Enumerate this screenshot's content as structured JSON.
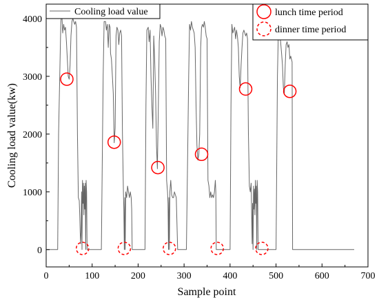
{
  "chart_data": {
    "type": "line",
    "xlabel": "Sample point",
    "ylabel": "Cooling load value(kw)",
    "xlim": [
      0,
      700
    ],
    "ylim": [
      -300,
      4250
    ],
    "xticks": [
      0,
      100,
      200,
      300,
      400,
      500,
      600,
      700
    ],
    "yticks": [
      0,
      1000,
      2000,
      3000,
      4000
    ],
    "grid": false,
    "legend_line": "Cooling load value",
    "legend_markers": [
      "lunch time period",
      "dinner time period"
    ],
    "series": [
      {
        "name": "Cooling load value",
        "color": "#666666",
        "points": [
          [
            0,
            0
          ],
          [
            25,
            0
          ],
          [
            27,
            2000
          ],
          [
            32,
            3950
          ],
          [
            34,
            4100
          ],
          [
            36,
            3750
          ],
          [
            38,
            3900
          ],
          [
            40,
            3800
          ],
          [
            42,
            3850
          ],
          [
            44,
            3600
          ],
          [
            46,
            3300
          ],
          [
            48,
            3000
          ],
          [
            50,
            2950
          ],
          [
            52,
            3200
          ],
          [
            54,
            3700
          ],
          [
            56,
            3950
          ],
          [
            58,
            4000
          ],
          [
            60,
            3950
          ],
          [
            62,
            3900
          ],
          [
            64,
            3950
          ],
          [
            66,
            3850
          ],
          [
            68,
            2000
          ],
          [
            70,
            900
          ],
          [
            72,
            850
          ],
          [
            73,
            600
          ],
          [
            74,
            300
          ],
          [
            75,
            100
          ],
          [
            76,
            300
          ],
          [
            77,
            1000
          ],
          [
            78,
            0
          ],
          [
            79,
            1200
          ],
          [
            80,
            800
          ],
          [
            81,
            1150
          ],
          [
            82,
            600
          ],
          [
            83,
            1100
          ],
          [
            84,
            700
          ],
          [
            85,
            1150
          ],
          [
            86,
            0
          ],
          [
            87,
            1200
          ],
          [
            88,
            1000
          ],
          [
            89,
            0
          ],
          [
            120,
            0
          ],
          [
            124,
            3000
          ],
          [
            126,
            3950
          ],
          [
            129,
            3950
          ],
          [
            131,
            3800
          ],
          [
            133,
            3900
          ],
          [
            135,
            3500
          ],
          [
            137,
            3900
          ],
          [
            139,
            3850
          ],
          [
            140,
            3400
          ],
          [
            142,
            3300
          ],
          [
            144,
            3000
          ],
          [
            146,
            2700
          ],
          [
            148,
            1850
          ],
          [
            150,
            2100
          ],
          [
            152,
            3700
          ],
          [
            154,
            3850
          ],
          [
            156,
            3800
          ],
          [
            158,
            3550
          ],
          [
            160,
            3750
          ],
          [
            162,
            3800
          ],
          [
            164,
            3700
          ],
          [
            166,
            2000
          ],
          [
            168,
            1000
          ],
          [
            169,
            700
          ],
          [
            170,
            0
          ],
          [
            171,
            900
          ],
          [
            172,
            0
          ],
          [
            173,
            1000
          ],
          [
            175,
            900
          ],
          [
            177,
            1100
          ],
          [
            179,
            1000
          ],
          [
            181,
            900
          ],
          [
            183,
            1000
          ],
          [
            185,
            900
          ],
          [
            186,
            700
          ],
          [
            187,
            0
          ],
          [
            215,
            0
          ],
          [
            217,
            2500
          ],
          [
            219,
            3800
          ],
          [
            222,
            3850
          ],
          [
            224,
            3600
          ],
          [
            226,
            3800
          ],
          [
            228,
            3000
          ],
          [
            230,
            2500
          ],
          [
            232,
            2100
          ],
          [
            234,
            3700
          ],
          [
            236,
            3300
          ],
          [
            238,
            2700
          ],
          [
            240,
            1800
          ],
          [
            242,
            1400
          ],
          [
            244,
            2500
          ],
          [
            246,
            3600
          ],
          [
            248,
            3900
          ],
          [
            250,
            3850
          ],
          [
            252,
            3700
          ],
          [
            254,
            3850
          ],
          [
            256,
            3800
          ],
          [
            258,
            3700
          ],
          [
            260,
            3650
          ],
          [
            262,
            1200
          ],
          [
            264,
            1000
          ],
          [
            265,
            800
          ],
          [
            266,
            0
          ],
          [
            267,
            900
          ],
          [
            268,
            0
          ],
          [
            269,
            1000
          ],
          [
            271,
            1200
          ],
          [
            273,
            950
          ],
          [
            275,
            900
          ],
          [
            277,
            900
          ],
          [
            279,
            1000
          ],
          [
            281,
            950
          ],
          [
            283,
            900
          ],
          [
            286,
            0
          ],
          [
            305,
            0
          ],
          [
            308,
            1800
          ],
          [
            310,
            3000
          ],
          [
            312,
            3900
          ],
          [
            314,
            3800
          ],
          [
            316,
            3950
          ],
          [
            318,
            3850
          ],
          [
            320,
            3800
          ],
          [
            322,
            3750
          ],
          [
            324,
            3500
          ],
          [
            326,
            2500
          ],
          [
            328,
            1800
          ],
          [
            330,
            1550
          ],
          [
            332,
            1650
          ],
          [
            334,
            2000
          ],
          [
            336,
            3500
          ],
          [
            338,
            3850
          ],
          [
            340,
            3900
          ],
          [
            342,
            3850
          ],
          [
            344,
            3950
          ],
          [
            346,
            3850
          ],
          [
            348,
            3700
          ],
          [
            350,
            3650
          ],
          [
            352,
            1200
          ],
          [
            354,
            1100
          ],
          [
            356,
            900
          ],
          [
            358,
            1000
          ],
          [
            360,
            900
          ],
          [
            362,
            950
          ],
          [
            364,
            900
          ],
          [
            366,
            1000
          ],
          [
            368,
            1200
          ],
          [
            369,
            1000
          ],
          [
            370,
            0
          ],
          [
            400,
            0
          ],
          [
            402,
            2500
          ],
          [
            404,
            3900
          ],
          [
            406,
            3750
          ],
          [
            408,
            3800
          ],
          [
            410,
            3850
          ],
          [
            412,
            3650
          ],
          [
            414,
            3800
          ],
          [
            416,
            3700
          ],
          [
            418,
            3500
          ],
          [
            420,
            3000
          ],
          [
            422,
            2800
          ],
          [
            424,
            3200
          ],
          [
            426,
            3500
          ],
          [
            428,
            3750
          ],
          [
            430,
            3800
          ],
          [
            432,
            3750
          ],
          [
            434,
            3700
          ],
          [
            436,
            3750
          ],
          [
            438,
            3650
          ],
          [
            440,
            2000
          ],
          [
            442,
            1100
          ],
          [
            444,
            1000
          ],
          [
            446,
            1150
          ],
          [
            447,
            600
          ],
          [
            448,
            100
          ],
          [
            449,
            800
          ],
          [
            450,
            0
          ],
          [
            451,
            1100
          ],
          [
            452,
            700
          ],
          [
            453,
            1050
          ],
          [
            454,
            600
          ],
          [
            455,
            1200
          ],
          [
            456,
            800
          ],
          [
            457,
            1100
          ],
          [
            458,
            0
          ],
          [
            459,
            1200
          ],
          [
            460,
            1000
          ],
          [
            461,
            0
          ],
          [
            500,
            0
          ],
          [
            503,
            3000
          ],
          [
            505,
            3750
          ],
          [
            508,
            3700
          ],
          [
            510,
            3600
          ],
          [
            512,
            3400
          ],
          [
            514,
            3200
          ],
          [
            516,
            2800
          ],
          [
            518,
            2700
          ],
          [
            520,
            3200
          ],
          [
            522,
            3550
          ],
          [
            524,
            3600
          ],
          [
            526,
            3500
          ],
          [
            528,
            3550
          ],
          [
            530,
            3300
          ],
          [
            532,
            3350
          ],
          [
            535,
            3250
          ],
          [
            536,
            0
          ],
          [
            670,
            0
          ]
        ]
      }
    ],
    "annotations": {
      "lunch": [
        [
          45,
          2950
        ],
        [
          148,
          1860
        ],
        [
          243,
          1420
        ],
        [
          338,
          1650
        ],
        [
          434,
          2780
        ],
        [
          530,
          2740
        ]
      ],
      "dinner": [
        [
          79,
          20
        ],
        [
          170,
          20
        ],
        [
          268,
          20
        ],
        [
          469,
          20
        ],
        [
          372,
          20
        ]
      ]
    }
  }
}
